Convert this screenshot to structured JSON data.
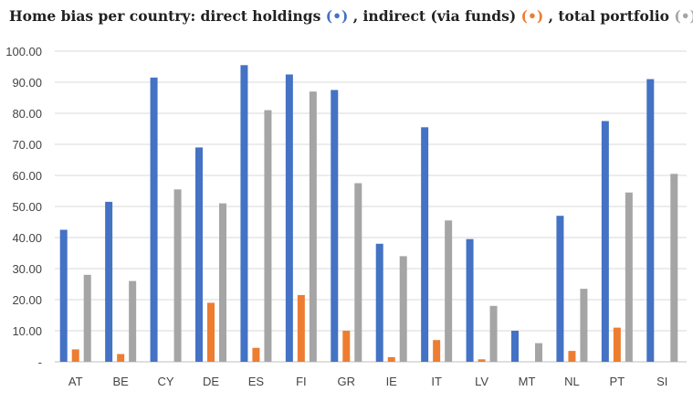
{
  "title": {
    "prefix": "Home bias per country: direct holdings ",
    "marker1": "(•)",
    "mid1": " , indirect (via funds) ",
    "marker2": "(•)",
    "mid2": " , total portfolio ",
    "marker3": "(•)"
  },
  "colors": {
    "direct": "#4472C4",
    "indirect": "#ED7D31",
    "total": "#A5A5A5",
    "grid": "#D9D9D9",
    "title_text": "#222222"
  },
  "chart_data": {
    "type": "bar",
    "categories": [
      "AT",
      "BE",
      "CY",
      "DE",
      "ES",
      "FI",
      "GR",
      "IE",
      "IT",
      "LV",
      "MT",
      "NL",
      "PT",
      "SI"
    ],
    "series": [
      {
        "name": "direct holdings",
        "color": "#4472C4",
        "values": [
          42.5,
          51.5,
          91.5,
          69.0,
          95.5,
          92.5,
          87.5,
          38.0,
          75.5,
          39.5,
          10.0,
          47.0,
          77.5,
          91.0
        ]
      },
      {
        "name": "indirect (via funds)",
        "color": "#ED7D31",
        "values": [
          4.0,
          2.5,
          0,
          19.0,
          4.5,
          21.5,
          10.0,
          1.5,
          7.0,
          0.8,
          0,
          3.5,
          11.0,
          0
        ]
      },
      {
        "name": "total portfolio",
        "color": "#A5A5A5",
        "values": [
          28.0,
          26.0,
          55.5,
          51.0,
          81.0,
          87.0,
          57.5,
          34.0,
          45.5,
          18.0,
          6.0,
          23.5,
          54.5,
          60.5
        ]
      }
    ],
    "y_ticks": [
      "-",
      "10.00",
      "20.00",
      "30.00",
      "40.00",
      "50.00",
      "60.00",
      "70.00",
      "80.00",
      "90.00",
      "100.00"
    ],
    "ylim": [
      0,
      100
    ],
    "grid": true,
    "legend": "in title"
  }
}
